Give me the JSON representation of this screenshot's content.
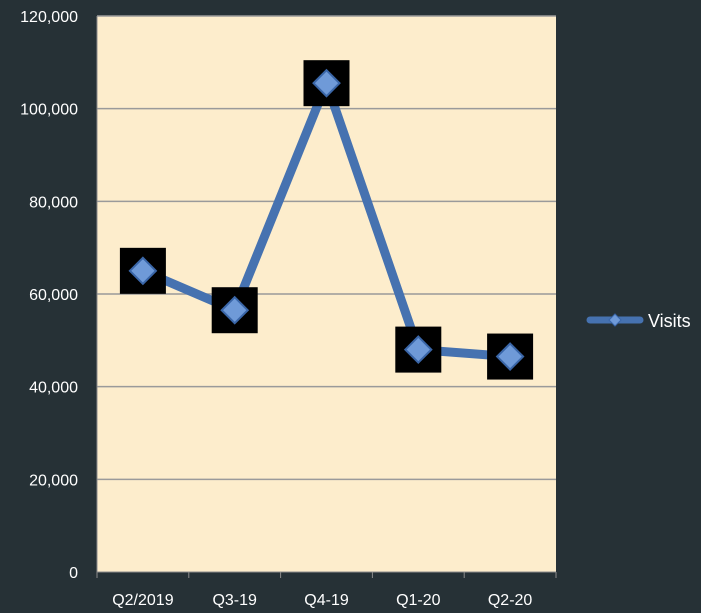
{
  "chart_data": {
    "type": "line",
    "title": "",
    "xlabel": "",
    "ylabel": "",
    "categories": [
      "Q2/2019",
      "Q3-19",
      "Q4-19",
      "Q1-20",
      "Q2-20"
    ],
    "series": [
      {
        "name": "Visits",
        "values": [
          65000,
          56500,
          105500,
          48000,
          46500
        ]
      }
    ],
    "ylim": [
      0,
      120000
    ],
    "yticks": [
      0,
      20000,
      40000,
      60000,
      80000,
      100000,
      120000
    ],
    "ytick_labels": [
      "0",
      "20,000",
      "40,000",
      "60,000",
      "80,000",
      "100,000",
      "120,000"
    ],
    "grid": true,
    "legend": {
      "position": "right",
      "entries": [
        "Visits"
      ]
    },
    "colors": {
      "background": "#263136",
      "plot_area": "#fdedcc",
      "gridline": "#9a9a9a",
      "line": "#4672b0",
      "marker_fill": "#6f9ad8",
      "marker_edge": "#3a66a8",
      "marker_shadow": "#000000",
      "text": "#ffffff"
    }
  }
}
